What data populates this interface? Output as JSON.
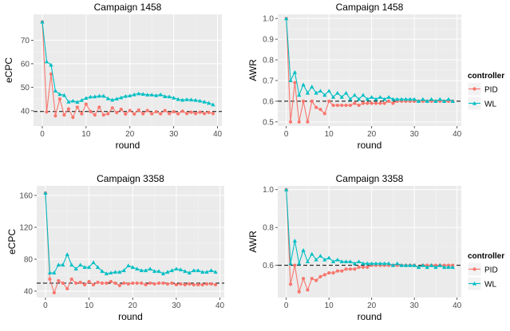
{
  "colors": {
    "PID": "#F8766D",
    "WL": "#00BFC4",
    "panel_bg": "#EBEBEB",
    "grid": "#FFFFFF",
    "reference": "#000000"
  },
  "legend": {
    "title": "controller",
    "items": [
      "PID",
      "WL"
    ],
    "placement": "right"
  },
  "chart_data": [
    {
      "type": "line",
      "title": "Campaign 1458",
      "xlabel": "round",
      "ylabel": "eCPC",
      "xlim": [
        -2,
        41
      ],
      "ylim": [
        33.5,
        81
      ],
      "xticks": [
        0,
        10,
        20,
        30,
        40
      ],
      "yticks": [
        40,
        50,
        60,
        70
      ],
      "reference_line": 39.7,
      "grid": true,
      "x": [
        0,
        1,
        2,
        3,
        4,
        5,
        6,
        7,
        8,
        9,
        10,
        11,
        12,
        13,
        14,
        15,
        16,
        17,
        18,
        19,
        20,
        21,
        22,
        23,
        24,
        25,
        26,
        27,
        28,
        29,
        30,
        31,
        32,
        33,
        34,
        35,
        36,
        37,
        38,
        39
      ],
      "series": [
        {
          "name": "PID",
          "marker": "circle",
          "values": [
            77.8,
            39.5,
            55.6,
            37.8,
            45.0,
            38.2,
            40.8,
            37.2,
            41.5,
            38.7,
            42.8,
            39.7,
            38.2,
            41.5,
            38.2,
            38.7,
            41.2,
            39.2,
            40.6,
            38.6,
            40.1,
            38.6,
            40.3,
            38.7,
            40.1,
            38.7,
            39.6,
            38.7,
            40.1,
            38.8,
            39.6,
            38.7,
            39.8,
            38.8,
            39.4,
            38.8,
            39.4,
            38.8,
            39.3,
            38.8
          ]
        },
        {
          "name": "WL",
          "marker": "triangle",
          "values": [
            77.8,
            60.9,
            59.5,
            48.5,
            47.0,
            46.6,
            43.8,
            44.2,
            43.7,
            44.5,
            45.4,
            45.9,
            46.0,
            46.3,
            46.3,
            45.2,
            44.6,
            45.1,
            45.6,
            46.2,
            46.4,
            46.9,
            47.3,
            47.1,
            46.8,
            46.8,
            46.5,
            46.9,
            46.1,
            46.0,
            45.5,
            44.9,
            44.6,
            44.8,
            44.7,
            44.5,
            44.2,
            43.8,
            43.3,
            42.6
          ]
        }
      ]
    },
    {
      "type": "line",
      "title": "Campaign 1458",
      "xlabel": "round",
      "ylabel": "AWR",
      "xlim": [
        -2,
        41
      ],
      "ylim": [
        0.48,
        1.02
      ],
      "xticks": [
        0,
        10,
        20,
        30,
        40
      ],
      "yticks": [
        0.5,
        0.6,
        0.7,
        0.8,
        0.9,
        1.0
      ],
      "reference_line": 0.6,
      "grid": true,
      "x": [
        0,
        1,
        2,
        3,
        4,
        5,
        6,
        7,
        8,
        9,
        10,
        11,
        12,
        13,
        14,
        15,
        16,
        17,
        18,
        19,
        20,
        21,
        22,
        23,
        24,
        25,
        26,
        27,
        28,
        29,
        30,
        31,
        32,
        33,
        34,
        35,
        36,
        37,
        38,
        39
      ],
      "series": [
        {
          "name": "PID",
          "marker": "circle",
          "values": [
            1.0,
            0.5,
            0.69,
            0.5,
            0.6,
            0.5,
            0.6,
            0.57,
            0.56,
            0.54,
            0.6,
            0.58,
            0.58,
            0.58,
            0.58,
            0.58,
            0.59,
            0.58,
            0.59,
            0.59,
            0.59,
            0.59,
            0.59,
            0.59,
            0.6,
            0.59,
            0.6,
            0.6,
            0.6,
            0.6,
            0.6,
            0.6,
            0.6,
            0.6,
            0.6,
            0.6,
            0.6,
            0.6,
            0.6,
            0.6
          ]
        },
        {
          "name": "WL",
          "marker": "triangle",
          "values": [
            1.0,
            0.7,
            0.74,
            0.63,
            0.68,
            0.64,
            0.67,
            0.64,
            0.65,
            0.63,
            0.65,
            0.62,
            0.64,
            0.62,
            0.64,
            0.61,
            0.63,
            0.61,
            0.63,
            0.61,
            0.62,
            0.61,
            0.62,
            0.61,
            0.62,
            0.61,
            0.61,
            0.61,
            0.61,
            0.61,
            0.61,
            0.6,
            0.61,
            0.6,
            0.61,
            0.6,
            0.61,
            0.6,
            0.61,
            0.6
          ]
        }
      ]
    },
    {
      "type": "line",
      "title": "Campaign 3358",
      "xlabel": "round",
      "ylabel": "eCPC",
      "xlim": [
        -2,
        41
      ],
      "ylim": [
        32,
        172
      ],
      "xticks": [
        0,
        10,
        20,
        30,
        40
      ],
      "yticks": [
        40,
        80,
        120,
        160
      ],
      "reference_line": 50,
      "grid": true,
      "x": [
        0,
        1,
        2,
        3,
        4,
        5,
        6,
        7,
        8,
        9,
        10,
        11,
        12,
        13,
        14,
        15,
        16,
        17,
        18,
        19,
        20,
        21,
        22,
        23,
        24,
        25,
        26,
        27,
        28,
        29,
        30,
        31,
        32,
        33,
        34,
        35,
        36,
        37,
        38,
        39
      ],
      "series": [
        {
          "name": "PID",
          "marker": "circle",
          "values": [
            163,
            55,
            38,
            53,
            50,
            43,
            55,
            50,
            51,
            48,
            52,
            48,
            51,
            50,
            50,
            52,
            50,
            47,
            50,
            49,
            50,
            50,
            50,
            48,
            50,
            49,
            50,
            50,
            49,
            50,
            48,
            49,
            48,
            49,
            48,
            48,
            48,
            49,
            49,
            48
          ]
        },
        {
          "name": "WL",
          "marker": "triangle",
          "values": [
            163,
            63,
            63,
            73,
            73,
            86,
            73,
            68,
            73,
            70,
            70,
            76,
            70,
            65,
            62,
            63,
            64,
            64,
            66,
            72,
            70,
            68,
            66,
            66,
            68,
            65,
            65,
            62,
            64,
            66,
            68,
            67,
            65,
            63,
            66,
            66,
            64,
            64,
            66,
            64
          ]
        }
      ]
    },
    {
      "type": "line",
      "title": "Campaign 3358",
      "xlabel": "round",
      "ylabel": "AWR",
      "xlim": [
        -2,
        41
      ],
      "ylim": [
        0.43,
        1.02
      ],
      "xticks": [
        0,
        10,
        20,
        30,
        40
      ],
      "yticks": [
        0.6,
        0.8,
        1.0
      ],
      "reference_line": 0.6,
      "grid": true,
      "x": [
        0,
        1,
        2,
        3,
        4,
        5,
        6,
        7,
        8,
        9,
        10,
        11,
        12,
        13,
        14,
        15,
        16,
        17,
        18,
        19,
        20,
        21,
        22,
        23,
        24,
        25,
        26,
        27,
        28,
        29,
        30,
        31,
        32,
        33,
        34,
        35,
        36,
        37,
        38,
        39
      ],
      "series": [
        {
          "name": "PID",
          "marker": "circle",
          "values": [
            1.0,
            0.5,
            0.6,
            0.46,
            0.53,
            0.47,
            0.53,
            0.52,
            0.54,
            0.55,
            0.56,
            0.56,
            0.57,
            0.57,
            0.58,
            0.58,
            0.58,
            0.59,
            0.59,
            0.59,
            0.6,
            0.6,
            0.6,
            0.6,
            0.6,
            0.6,
            0.6,
            0.6,
            0.6,
            0.6,
            0.6,
            0.59,
            0.6,
            0.6,
            0.6,
            0.6,
            0.6,
            0.6,
            0.6,
            0.6
          ]
        },
        {
          "name": "WL",
          "marker": "triangle",
          "values": [
            1.0,
            0.61,
            0.73,
            0.61,
            0.68,
            0.62,
            0.66,
            0.63,
            0.65,
            0.63,
            0.64,
            0.62,
            0.63,
            0.62,
            0.62,
            0.62,
            0.61,
            0.62,
            0.61,
            0.61,
            0.61,
            0.61,
            0.61,
            0.61,
            0.61,
            0.6,
            0.61,
            0.6,
            0.6,
            0.6,
            0.6,
            0.59,
            0.6,
            0.59,
            0.6,
            0.59,
            0.6,
            0.59,
            0.59,
            0.59
          ]
        }
      ]
    }
  ]
}
